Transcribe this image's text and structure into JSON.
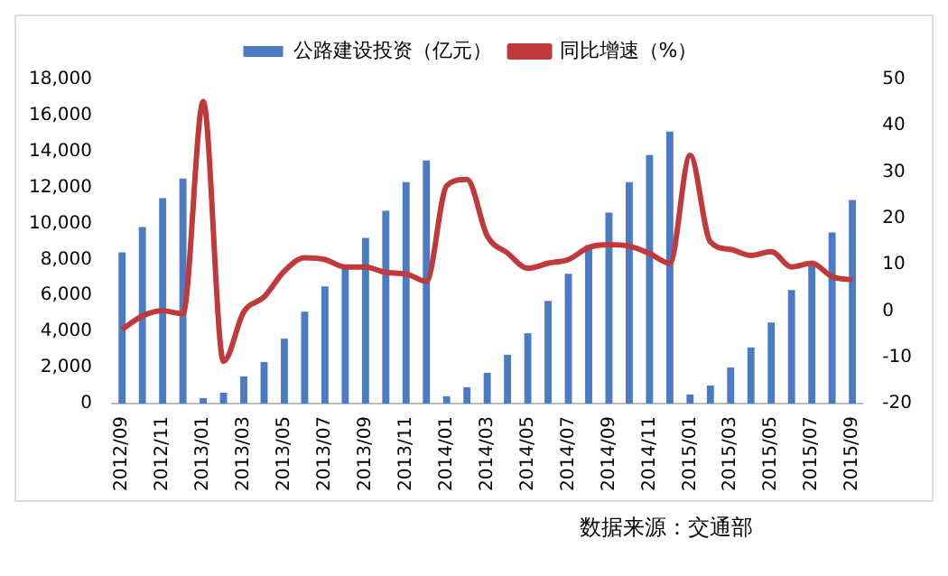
{
  "chart_data": {
    "type": "bar",
    "categories": [
      "2012/09",
      null,
      "2012/11",
      null,
      "2013/01",
      null,
      "2013/03",
      null,
      "2013/05",
      null,
      "2013/07",
      null,
      "2013/09",
      null,
      "2013/11",
      null,
      "2014/01",
      null,
      "2014/03",
      null,
      "2014/05",
      null,
      "2014/07",
      null,
      "2014/09",
      null,
      "2014/11",
      null,
      "2015/01",
      null,
      "2015/03",
      null,
      "2015/05",
      null,
      "2015/07",
      null,
      "2015/09"
    ],
    "series": [
      {
        "name": "公路建设投资（亿元）",
        "color": "#4a7bc4",
        "values": [
          8400,
          9800,
          11400,
          12500,
          300,
          600,
          1500,
          2300,
          3600,
          5100,
          6500,
          7700,
          9200,
          10700,
          12300,
          13500,
          400,
          900,
          1700,
          2700,
          3900,
          5700,
          7200,
          8800,
          10600,
          12300,
          13800,
          15100,
          500,
          1000,
          2000,
          3100,
          4500,
          6300,
          7700,
          9500,
          11300
        ]
      },
      {
        "name": "同比增速（%）",
        "type": "line",
        "axis": "y2",
        "color": "#c0393b",
        "values": [
          -4,
          -1.1,
          0,
          -0.6,
          45.2,
          -10.9,
          -0.2,
          3,
          8.6,
          11.5,
          11.1,
          9.5,
          9.5,
          8.3,
          8,
          6.4,
          27,
          28.4,
          16.2,
          12.5,
          9.2,
          10.3,
          11.1,
          13.7,
          14.3,
          14,
          12.4,
          10.3,
          33.6,
          14.9,
          13.3,
          12,
          12.8,
          9.5,
          10.3,
          7.4,
          6.7
        ]
      }
    ],
    "ylim": [
      0,
      18000
    ],
    "yticks": [
      0,
      {
        "value": 2000,
        "label": "2,000"
      },
      {
        "value": 4000,
        "label": "4,000"
      },
      {
        "value": 6000,
        "label": "6,000"
      },
      {
        "value": 8000,
        "label": "8,000"
      },
      {
        "value": 10000,
        "label": "10,000"
      },
      {
        "value": 12000,
        "label": "12,000"
      },
      {
        "value": 14000,
        "label": "14,000"
      },
      {
        "value": 16000,
        "label": "16,000"
      },
      {
        "value": 18000,
        "label": "18,000"
      }
    ],
    "y2lim": [
      -20,
      50
    ],
    "y2ticks": [
      -20,
      -10,
      0,
      10,
      20,
      30,
      40,
      50
    ],
    "grid": false,
    "legend": "top",
    "marker": "none",
    "annotations": [
      "数据来源：交通部"
    ]
  }
}
